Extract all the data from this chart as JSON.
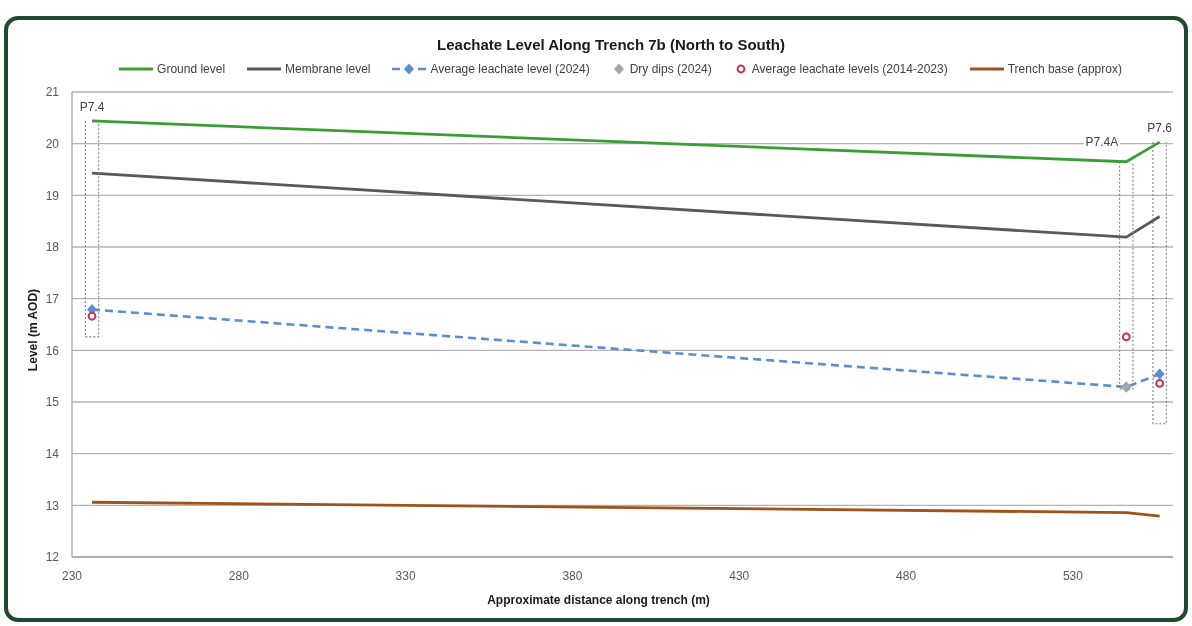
{
  "chart_data": {
    "type": "line",
    "title": "Leachate Level Along Trench 7b (North to South)",
    "xlabel": "Approximate distance along trench (m)",
    "ylabel": "Level (m AOD)",
    "xlim": [
      230,
      560
    ],
    "xticks": [
      230,
      280,
      330,
      380,
      430,
      480,
      530
    ],
    "ylim": [
      12,
      21
    ],
    "yticks": [
      12,
      13,
      14,
      15,
      16,
      17,
      18,
      19,
      20,
      21
    ],
    "grid": "y",
    "legend": "top",
    "series": [
      {
        "name": "Ground level",
        "color": "#3c9d37",
        "x": [
          236,
          546,
          556
        ],
        "values": [
          20.44,
          19.65,
          20.03
        ],
        "marker": "none",
        "line_style": "solid"
      },
      {
        "name": "Membrane level",
        "color": "#595959",
        "x": [
          236,
          546,
          556
        ],
        "values": [
          19.43,
          18.19,
          18.59
        ],
        "marker": "none",
        "line_style": "solid"
      },
      {
        "name": "Average leachate level (2024)",
        "color": "#5b8dd3",
        "x": [
          236,
          546,
          556
        ],
        "values": [
          16.79,
          15.29,
          15.54
        ],
        "marker": "diamond",
        "line_style": "dashed"
      },
      {
        "name": "Dry dips (2024)",
        "type": "scatter",
        "color": "#a5a5a5",
        "x": [
          546
        ],
        "values": [
          15.29
        ],
        "marker": "diamond"
      },
      {
        "name": "Average leachate levels (2014-2023)",
        "type": "scatter",
        "color": "#c0325a",
        "x": [
          236,
          546,
          556
        ],
        "values": [
          16.66,
          16.26,
          15.36
        ],
        "marker": "circle"
      },
      {
        "name": "Trench base (approx)",
        "color": "#a0521c",
        "x": [
          236,
          546,
          556
        ],
        "values": [
          13.06,
          12.86,
          12.79
        ],
        "marker": "none",
        "line_style": "solid"
      },
      {
        "color": "#7f7f7f",
        "x": [
          234,
          234,
          238,
          238
        ],
        "values": [
          20.44,
          16.26,
          16.26,
          20.44
        ],
        "marker": "none",
        "line_style": "dotted"
      },
      {
        "color": "#7f7f7f",
        "x": [
          544,
          544,
          548,
          548
        ],
        "values": [
          19.65,
          15.25,
          15.25,
          19.65
        ],
        "marker": "none",
        "line_style": "dotted"
      },
      {
        "color": "#7f7f7f",
        "x": [
          554,
          554,
          558,
          558
        ],
        "values": [
          20.03,
          14.58,
          14.58,
          20.03
        ],
        "marker": "none",
        "line_style": "dotted"
      }
    ],
    "annotations": [
      {
        "text": "P7.4",
        "x": 236,
        "y": 20.44
      },
      {
        "text": "P7.4A",
        "x": 546,
        "y": 19.65
      },
      {
        "text": "P7.6",
        "x": 556,
        "y": 20.03
      }
    ]
  }
}
